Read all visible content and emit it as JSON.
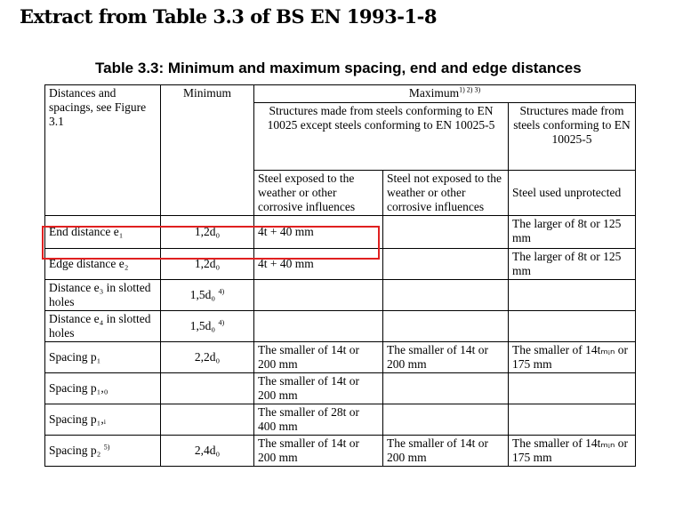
{
  "heading": "Extract from Table 3.3 of BS EN 1993-1-8",
  "caption": "Table 3.3: Minimum and maximum spacing, end and edge distances",
  "header": {
    "distances": "Distances and spacings, see Figure 3.1",
    "minimum": "Minimum",
    "maximum": "Maximum",
    "maximum_notes": "1) 2) 3)",
    "group_except": "Structures made from steels conforming to EN 10025 except steels conforming to EN 10025-5",
    "group_10025_5": "Structures made from steels conforming to EN 10025-5",
    "exposed": "Steel exposed to the weather or other corrosive influences",
    "not_exposed": "Steel not exposed to the weather or other corrosive influences",
    "unprotected": "Steel used unprotected"
  },
  "rows": [
    {
      "label": "End distance e₁",
      "min": "1,2d₀",
      "min_note": "",
      "exposed": "4t + 40 mm",
      "not_exposed": "",
      "unprotected": "The larger of 8t or 125 mm",
      "label_note": ""
    },
    {
      "label": "Edge distance e₂",
      "min": "1,2d₀",
      "min_note": "",
      "exposed": "4t + 40 mm",
      "not_exposed": "",
      "unprotected": "The larger of 8t or 125 mm",
      "label_note": ""
    },
    {
      "label": "Distance e₃ in slotted holes",
      "min": "1,5d₀",
      "min_note": "4)",
      "exposed": "",
      "not_exposed": "",
      "unprotected": "",
      "label_note": ""
    },
    {
      "label": "Distance e₄ in slotted holes",
      "min": "1,5d₀",
      "min_note": "4)",
      "exposed": "",
      "not_exposed": "",
      "unprotected": "",
      "label_note": ""
    },
    {
      "label": "Spacing p₁",
      "min": "2,2d₀",
      "min_note": "",
      "exposed": "The smaller of 14t or 200 mm",
      "not_exposed": "The smaller of 14t or 200 mm",
      "unprotected": "The smaller of 14tₘᵢₙ or 175 mm",
      "label_note": ""
    },
    {
      "label": "Spacing p₁,₀",
      "min": "",
      "min_note": "",
      "exposed": "The smaller of 14t or 200 mm",
      "not_exposed": "",
      "unprotected": "",
      "label_note": ""
    },
    {
      "label": "Spacing p₁,ᵢ",
      "min": "",
      "min_note": "",
      "exposed": "The smaller of 28t or 400 mm",
      "not_exposed": "",
      "unprotected": "",
      "label_note": ""
    },
    {
      "label": "Spacing p₂",
      "min": "2,4d₀",
      "min_note": "",
      "exposed": "The smaller of 14t or 200 mm",
      "not_exposed": "The smaller of 14t or 200 mm",
      "unprotected": "The smaller of 14tₘᵢₙ or 175 mm",
      "label_note": "5)"
    }
  ],
  "highlight_color": "#e02020"
}
